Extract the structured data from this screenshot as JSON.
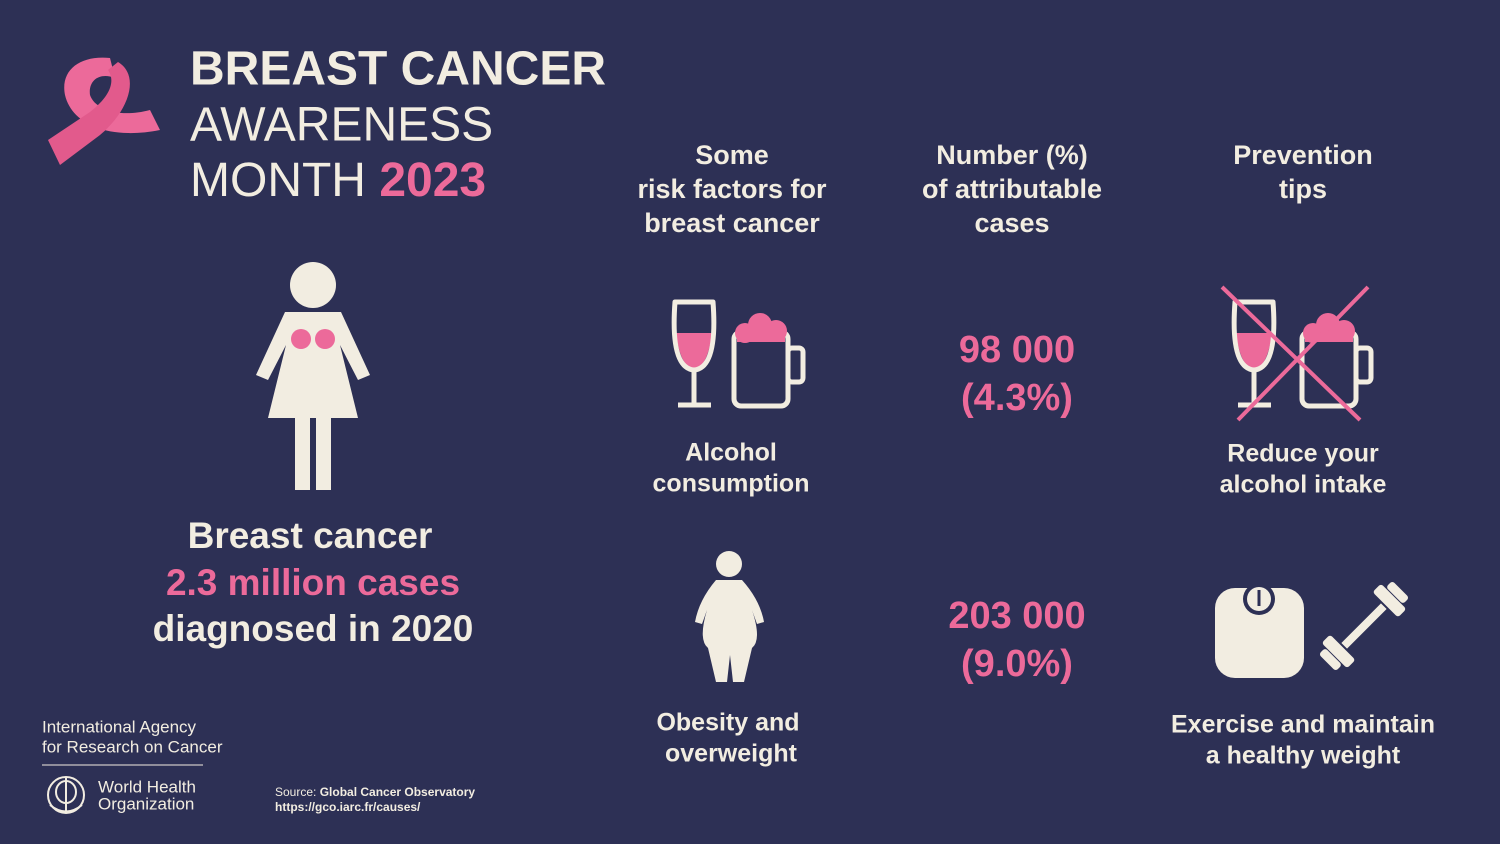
{
  "header": {
    "line1": "BREAST CANCER",
    "line2": "AWARENESS",
    "line3": "MONTH",
    "year": "2023"
  },
  "columns": [
    {
      "lines": [
        "Some",
        "risk factors for",
        "breast cancer"
      ]
    },
    {
      "lines": [
        "Number (%)",
        "of attributable",
        "cases"
      ]
    },
    {
      "lines": [
        "Prevention",
        "tips"
      ]
    }
  ],
  "rows": [
    {
      "factor": [
        "Alcohol",
        "consumption"
      ],
      "number": "98 000",
      "percent": "(4.3%)",
      "tip": [
        "Reduce your",
        "alcohol intake"
      ]
    },
    {
      "factor": [
        "Obesity and",
        "overweight"
      ],
      "number": "203 000",
      "percent": "(9.0%)",
      "tip": [
        "Exercise and maintain",
        "a healthy weight"
      ]
    }
  ],
  "left_stat": {
    "lines": [
      "Breast cancer",
      "2.3 million cases",
      "diagnosed in 2020"
    ]
  },
  "footer": {
    "iarc": [
      "International Agency",
      "for Research on Cancer"
    ],
    "who": [
      "World Health",
      "Organization"
    ],
    "source_label": "Source:",
    "source_name": "Global Cancer Observatory",
    "source_url": "https://gco.iarc.fr/causes/"
  }
}
